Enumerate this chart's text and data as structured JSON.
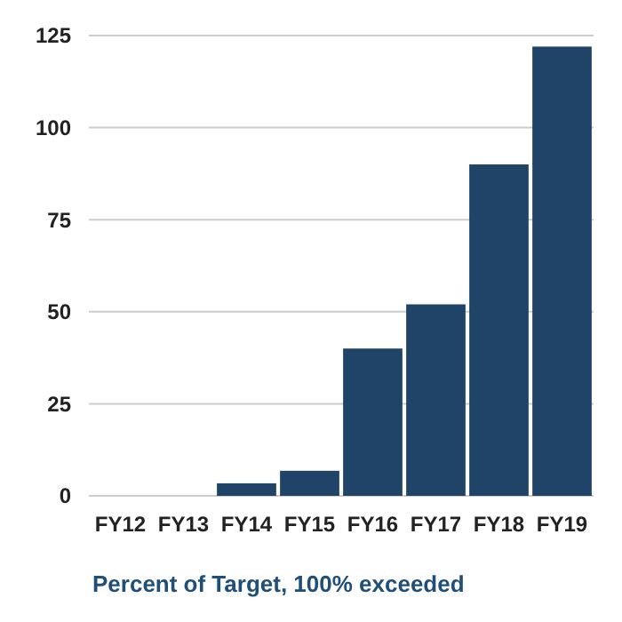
{
  "chart_data": {
    "type": "bar",
    "xlabel": "Percent of Target, 100% exceeded",
    "categories": [
      "FY12",
      "FY13",
      "FY14",
      "FY15",
      "FY16",
      "FY17",
      "FY18",
      "FY19"
    ],
    "values": [
      0,
      0,
      3.4,
      6.8,
      40,
      52,
      90,
      122
    ],
    "color": "#1f4468",
    "ylim": [
      0,
      125
    ],
    "yticks": [
      0,
      25,
      50,
      75,
      100,
      125
    ],
    "grid": "y"
  }
}
